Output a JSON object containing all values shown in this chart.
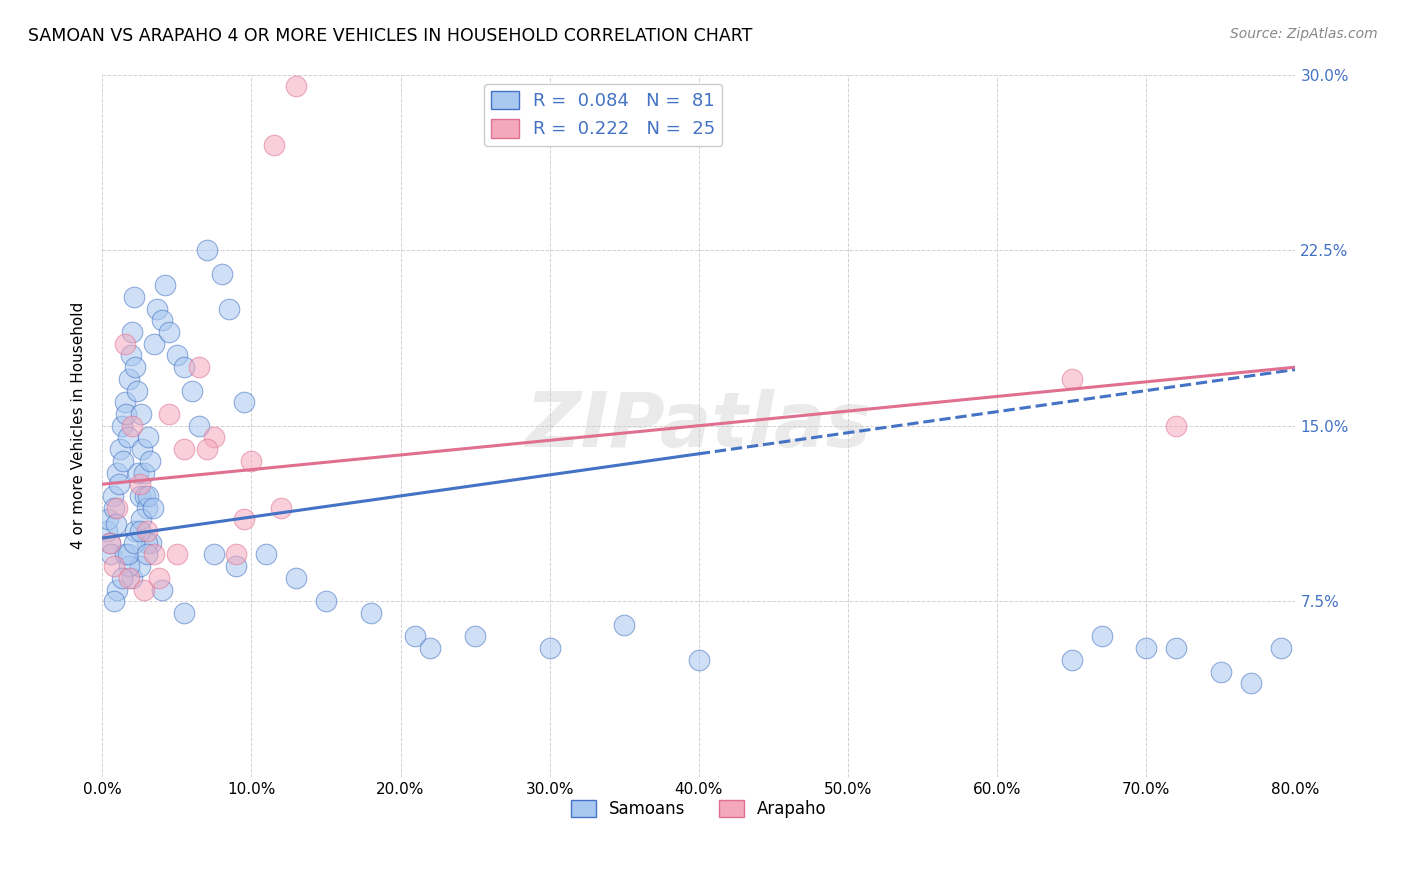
{
  "title": "SAMOAN VS ARAPAHO 4 OR MORE VEHICLES IN HOUSEHOLD CORRELATION CHART",
  "source": "Source: ZipAtlas.com",
  "ylabel_label": "4 or more Vehicles in Household",
  "xlim": [
    0.0,
    80.0
  ],
  "ylim": [
    0.0,
    30.0
  ],
  "samoans_color": "#A8C8F0",
  "arapaho_color": "#F4A8BC",
  "samoans_R": 0.084,
  "samoans_N": 81,
  "arapaho_R": 0.222,
  "arapaho_N": 25,
  "blue_line_color": "#4472C4",
  "pink_line_color": "#E07090",
  "watermark": "ZIPatlas",
  "blue_line_x0": 0.0,
  "blue_line_y0": 10.2,
  "blue_line_x1": 40.0,
  "blue_line_y1": 13.8,
  "blue_dash_x0": 40.0,
  "blue_dash_y0": 13.8,
  "blue_dash_x1": 80.0,
  "blue_dash_y1": 17.4,
  "pink_line_x0": 0.0,
  "pink_line_y0": 12.5,
  "pink_line_x1": 80.0,
  "pink_line_y1": 17.5,
  "samoans_x": [
    0.3,
    0.4,
    0.5,
    0.6,
    0.7,
    0.8,
    0.9,
    1.0,
    1.1,
    1.2,
    1.3,
    1.4,
    1.5,
    1.6,
    1.7,
    1.8,
    1.9,
    2.0,
    2.1,
    2.2,
    2.3,
    2.4,
    2.5,
    2.6,
    2.7,
    2.8,
    2.9,
    3.0,
    3.1,
    3.2,
    3.3,
    3.5,
    3.7,
    4.0,
    4.2,
    4.5,
    5.0,
    5.5,
    6.0,
    6.5,
    7.0,
    8.0,
    8.5,
    9.5,
    1.5,
    2.0,
    2.5,
    3.0,
    1.0,
    1.8,
    2.2,
    2.6,
    3.1,
    3.4,
    0.8,
    1.3,
    1.7,
    2.1,
    2.5,
    3.0,
    4.0,
    5.5,
    7.5,
    9.0,
    11.0,
    13.0,
    15.0,
    18.0,
    21.0,
    22.0,
    25.0,
    30.0,
    35.0,
    40.0,
    65.0,
    67.0,
    70.0,
    72.0,
    75.0,
    77.0,
    79.0
  ],
  "samoans_y": [
    10.5,
    11.0,
    10.0,
    9.5,
    12.0,
    11.5,
    10.8,
    13.0,
    12.5,
    14.0,
    15.0,
    13.5,
    16.0,
    15.5,
    14.5,
    17.0,
    18.0,
    19.0,
    20.5,
    17.5,
    16.5,
    13.0,
    12.0,
    15.5,
    14.0,
    13.0,
    12.0,
    11.5,
    14.5,
    13.5,
    10.0,
    18.5,
    20.0,
    19.5,
    21.0,
    19.0,
    18.0,
    17.5,
    16.5,
    15.0,
    22.5,
    21.5,
    20.0,
    16.0,
    9.5,
    8.5,
    9.0,
    10.0,
    8.0,
    9.0,
    10.5,
    11.0,
    12.0,
    11.5,
    7.5,
    8.5,
    9.5,
    10.0,
    10.5,
    9.5,
    8.0,
    7.0,
    9.5,
    9.0,
    9.5,
    8.5,
    7.5,
    7.0,
    6.0,
    5.5,
    6.0,
    5.5,
    6.5,
    5.0,
    5.0,
    6.0,
    5.5,
    5.5,
    4.5,
    4.0,
    5.5
  ],
  "arapaho_x": [
    0.5,
    1.0,
    1.5,
    2.0,
    2.5,
    3.0,
    3.5,
    4.5,
    5.5,
    6.5,
    7.5,
    9.0,
    10.0,
    11.5,
    13.0,
    0.8,
    1.8,
    2.8,
    3.8,
    5.0,
    7.0,
    9.5,
    12.0,
    65.0,
    72.0
  ],
  "arapaho_y": [
    10.0,
    11.5,
    18.5,
    15.0,
    12.5,
    10.5,
    9.5,
    15.5,
    14.0,
    17.5,
    14.5,
    9.5,
    13.5,
    27.0,
    29.5,
    9.0,
    8.5,
    8.0,
    8.5,
    9.5,
    14.0,
    11.0,
    11.5,
    17.0,
    15.0
  ]
}
